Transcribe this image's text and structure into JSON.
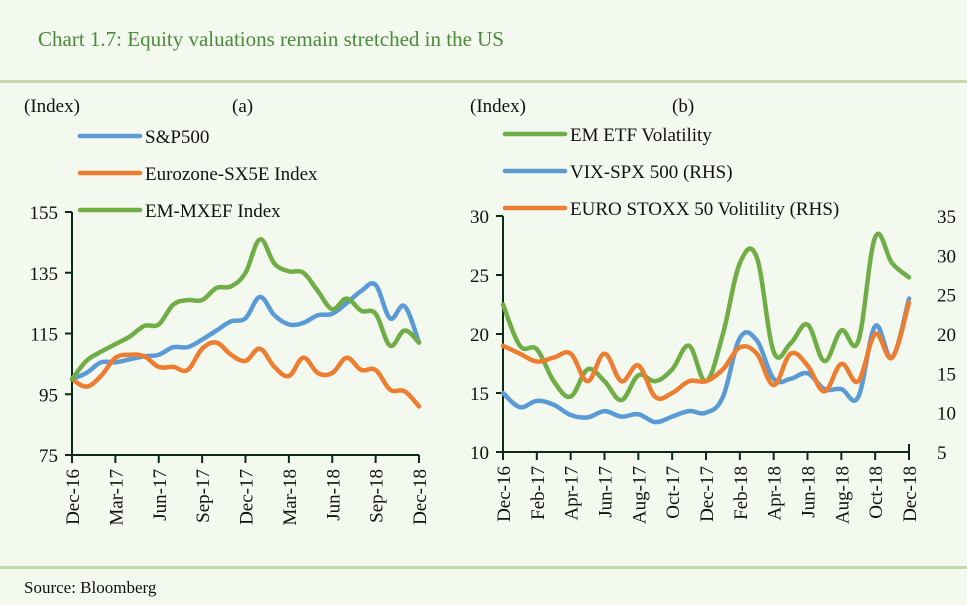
{
  "title": "Chart 1.7: Equity valuations remain stretched in the US",
  "source": "Source:  Bloomberg",
  "colors": {
    "blue": "#5b9bd5",
    "orange": "#ed7d31",
    "green": "#70ad47",
    "title": "#4a8a3a",
    "rule": "#c6dba7",
    "background": "#f3f9ee"
  },
  "chart_data": [
    {
      "type": "line",
      "panel_label": "(a)",
      "ylabel": "(Index)",
      "ylim": [
        75,
        155
      ],
      "yticks": [
        75,
        95,
        115,
        135,
        155
      ],
      "xtick_labels": [
        "Dec-16",
        "Mar-17",
        "Jun-17",
        "Sep-17",
        "Dec-17",
        "Mar-18",
        "Jun-18",
        "Sep-18",
        "Dec-18"
      ],
      "x": [
        "Dec-16",
        "Jan-17",
        "Feb-17",
        "Mar-17",
        "Apr-17",
        "May-17",
        "Jun-17",
        "Jul-17",
        "Aug-17",
        "Sep-17",
        "Oct-17",
        "Nov-17",
        "Dec-17",
        "Jan-18",
        "Feb-18",
        "Mar-18",
        "Apr-18",
        "May-18",
        "Jun-18",
        "Jul-18",
        "Aug-18",
        "Sep-18",
        "Oct-18",
        "Nov-18",
        "Dec-18"
      ],
      "legend": "top-left",
      "series": [
        {
          "name": "S&P500",
          "color": "#5b9bd5",
          "values": [
            100,
            102,
            105.5,
            105.5,
            106.5,
            107.5,
            108,
            110.5,
            110.5,
            113,
            116,
            119,
            120,
            127,
            121,
            118,
            118.5,
            121,
            121.5,
            125,
            129,
            131,
            120,
            124,
            112
          ]
        },
        {
          "name": "Eurozone-SX5E Index",
          "color": "#ed7d31",
          "values": [
            100,
            97.5,
            101,
            107,
            108,
            107.5,
            104,
            104,
            103,
            110,
            112,
            108,
            106,
            110,
            104,
            101,
            107,
            102,
            102,
            107,
            103,
            103,
            96.5,
            96,
            91
          ]
        },
        {
          "name": "EM-MXEF Index",
          "color": "#70ad47",
          "values": [
            100,
            106,
            109,
            111.5,
            114,
            117.5,
            118,
            124.5,
            126,
            126,
            130,
            130.5,
            135,
            146,
            138,
            135.5,
            135,
            129,
            123,
            126.5,
            122.5,
            121.5,
            111,
            116,
            112
          ]
        }
      ]
    },
    {
      "type": "line",
      "panel_label": "(b)",
      "ylabel": "(Index)",
      "ylim": [
        10,
        30
      ],
      "yticks": [
        10,
        15,
        20,
        25,
        30
      ],
      "y2lim": [
        5,
        35
      ],
      "y2ticks": [
        5,
        10,
        15,
        20,
        25,
        30,
        35
      ],
      "xtick_labels": [
        "Dec-16",
        "Feb-17",
        "Apr-17",
        "Jun-17",
        "Aug-17",
        "Oct-17",
        "Dec-17",
        "Feb-18",
        "Apr-18",
        "Jun-18",
        "Aug-18",
        "Oct-18",
        "Dec-18"
      ],
      "x": [
        "Dec-16",
        "Jan-17",
        "Feb-17",
        "Mar-17",
        "Apr-17",
        "May-17",
        "Jun-17",
        "Jul-17",
        "Aug-17",
        "Sep-17",
        "Oct-17",
        "Nov-17",
        "Dec-17",
        "Jan-18",
        "Feb-18",
        "Mar-18",
        "Apr-18",
        "May-18",
        "Jun-18",
        "Jul-18",
        "Aug-18",
        "Sep-18",
        "Oct-18",
        "Nov-18",
        "Dec-18"
      ],
      "legend": "top",
      "series": [
        {
          "name": "EM ETF Volatility",
          "color": "#70ad47",
          "axis": "left",
          "values": [
            22.5,
            19,
            18.7,
            16,
            14.7,
            17,
            16,
            14.4,
            16.5,
            16,
            17,
            19,
            16,
            20,
            26,
            26.5,
            18.5,
            19.2,
            20.8,
            17.7,
            20.3,
            19.4,
            28.2,
            26,
            24.8
          ]
        },
        {
          "name": "VIX-SPX 500 (RHS)",
          "color": "#5b9bd5",
          "axis": "right",
          "values": [
            12.5,
            10.7,
            11.5,
            11,
            9.7,
            9.4,
            10.2,
            9.5,
            9.8,
            8.8,
            9.5,
            10.2,
            10,
            12,
            19.5,
            19.2,
            14.3,
            14.3,
            15,
            13,
            13,
            12,
            21,
            17,
            24.5
          ]
        },
        {
          "name": "EURO STOXX 50 Volitility (RHS)",
          "color": "#ed7d31",
          "axis": "right",
          "values": [
            18.5,
            17.5,
            16.5,
            17,
            17.5,
            14,
            17.5,
            14,
            16,
            12,
            12.5,
            14,
            14,
            15.5,
            18.3,
            17.5,
            13.5,
            17.5,
            16,
            12.7,
            16.2,
            14,
            20,
            17,
            24
          ]
        }
      ]
    }
  ]
}
